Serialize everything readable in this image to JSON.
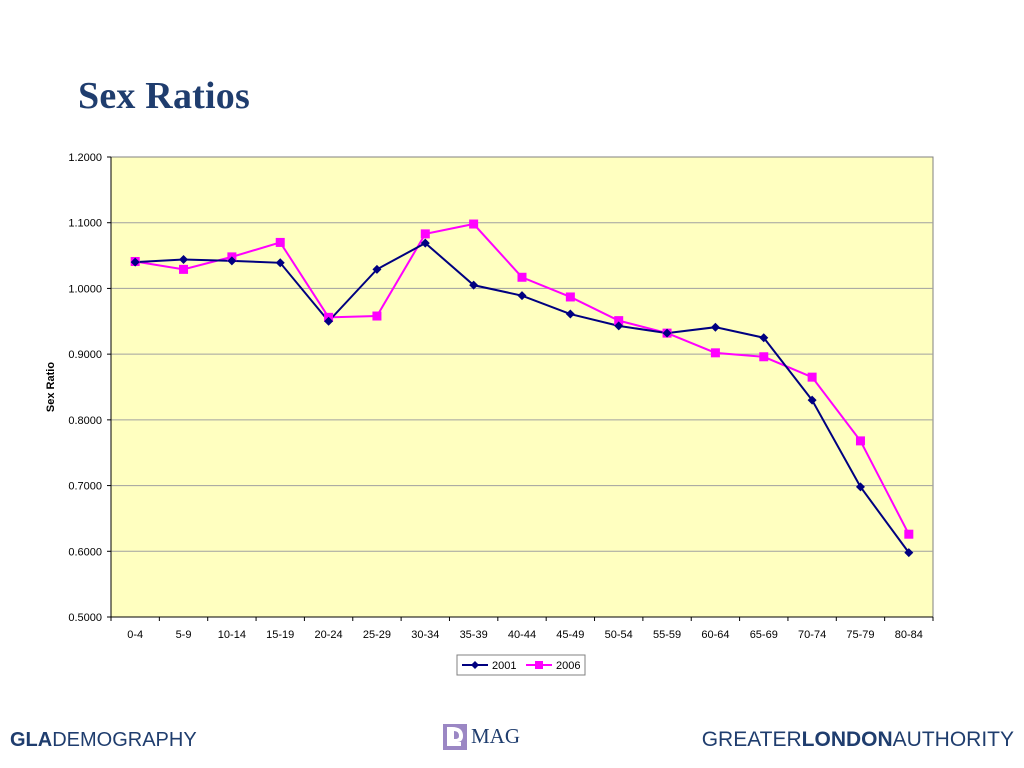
{
  "slide": {
    "title": "Sex Ratios"
  },
  "chart_data": {
    "type": "line",
    "title": "",
    "xlabel": "",
    "ylabel": "Sex Ratio",
    "ylim": [
      0.5,
      1.2
    ],
    "yticks": [
      "1.2000",
      "1.1000",
      "1.0000",
      "0.9000",
      "0.8000",
      "0.7000",
      "0.6000",
      "0.5000"
    ],
    "categories": [
      "0-4",
      "5-9",
      "10-14",
      "15-19",
      "20-24",
      "25-29",
      "30-34",
      "35-39",
      "40-44",
      "45-49",
      "50-54",
      "55-59",
      "60-64",
      "65-69",
      "70-74",
      "75-79",
      "80-84"
    ],
    "grid": true,
    "legend": "bottom",
    "plot_background": "#ffffc0",
    "series": [
      {
        "name": "2001",
        "color": "#000080",
        "marker": "diamond",
        "values": [
          1.04,
          1.044,
          1.042,
          1.039,
          0.95,
          1.029,
          1.069,
          1.005,
          0.989,
          0.961,
          0.943,
          0.932,
          0.941,
          0.925,
          0.83,
          0.698,
          0.598
        ]
      },
      {
        "name": "2006",
        "color": "#ff00ff",
        "marker": "square",
        "values": [
          1.041,
          1.029,
          1.048,
          1.07,
          0.956,
          0.958,
          1.083,
          1.098,
          1.017,
          0.987,
          0.951,
          0.932,
          0.902,
          0.896,
          0.865,
          0.768,
          0.626
        ]
      }
    ]
  },
  "footer": {
    "gla": "GLA",
    "demography": "DEMOGRAPHY",
    "mag": "MAG",
    "greater": "GREATER",
    "london": "LONDON",
    "authority": "AUTHORITY"
  },
  "colors": {
    "brand": "#1f3d6e",
    "logo_accent": "#9b87c4"
  }
}
